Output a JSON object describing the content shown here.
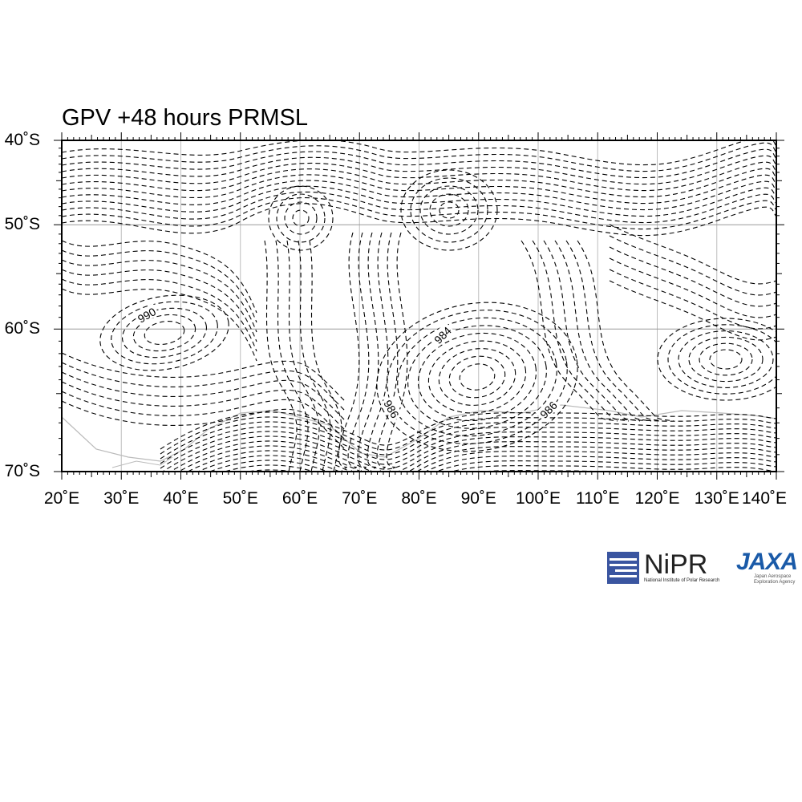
{
  "title": "GPV +48 hours PRMSL",
  "map": {
    "lon_range": [
      20,
      140
    ],
    "lat_range": [
      -70,
      -40
    ],
    "lat_labels": [
      "40˚S",
      "50˚S",
      "60˚S",
      "70˚S"
    ],
    "lon_labels": [
      "20˚E",
      "30˚E",
      "40˚E",
      "50˚E",
      "60˚E",
      "70˚E",
      "80˚E",
      "90˚E",
      "100˚E",
      "110˚E",
      "120˚E",
      "130˚E",
      "140˚E"
    ],
    "contour_style": "dashed black isobars",
    "contour_labels": [
      "990",
      "984",
      "986",
      "986"
    ],
    "gridlines": true,
    "coastline_color": "#bbbbbb"
  },
  "logos": {
    "nipr": {
      "name": "NiPR",
      "subtitle": "National Institute of Polar Research"
    },
    "jaxa": {
      "name": "JAXA",
      "subtitle": "Japan Aerospace Exploration Agency"
    }
  }
}
